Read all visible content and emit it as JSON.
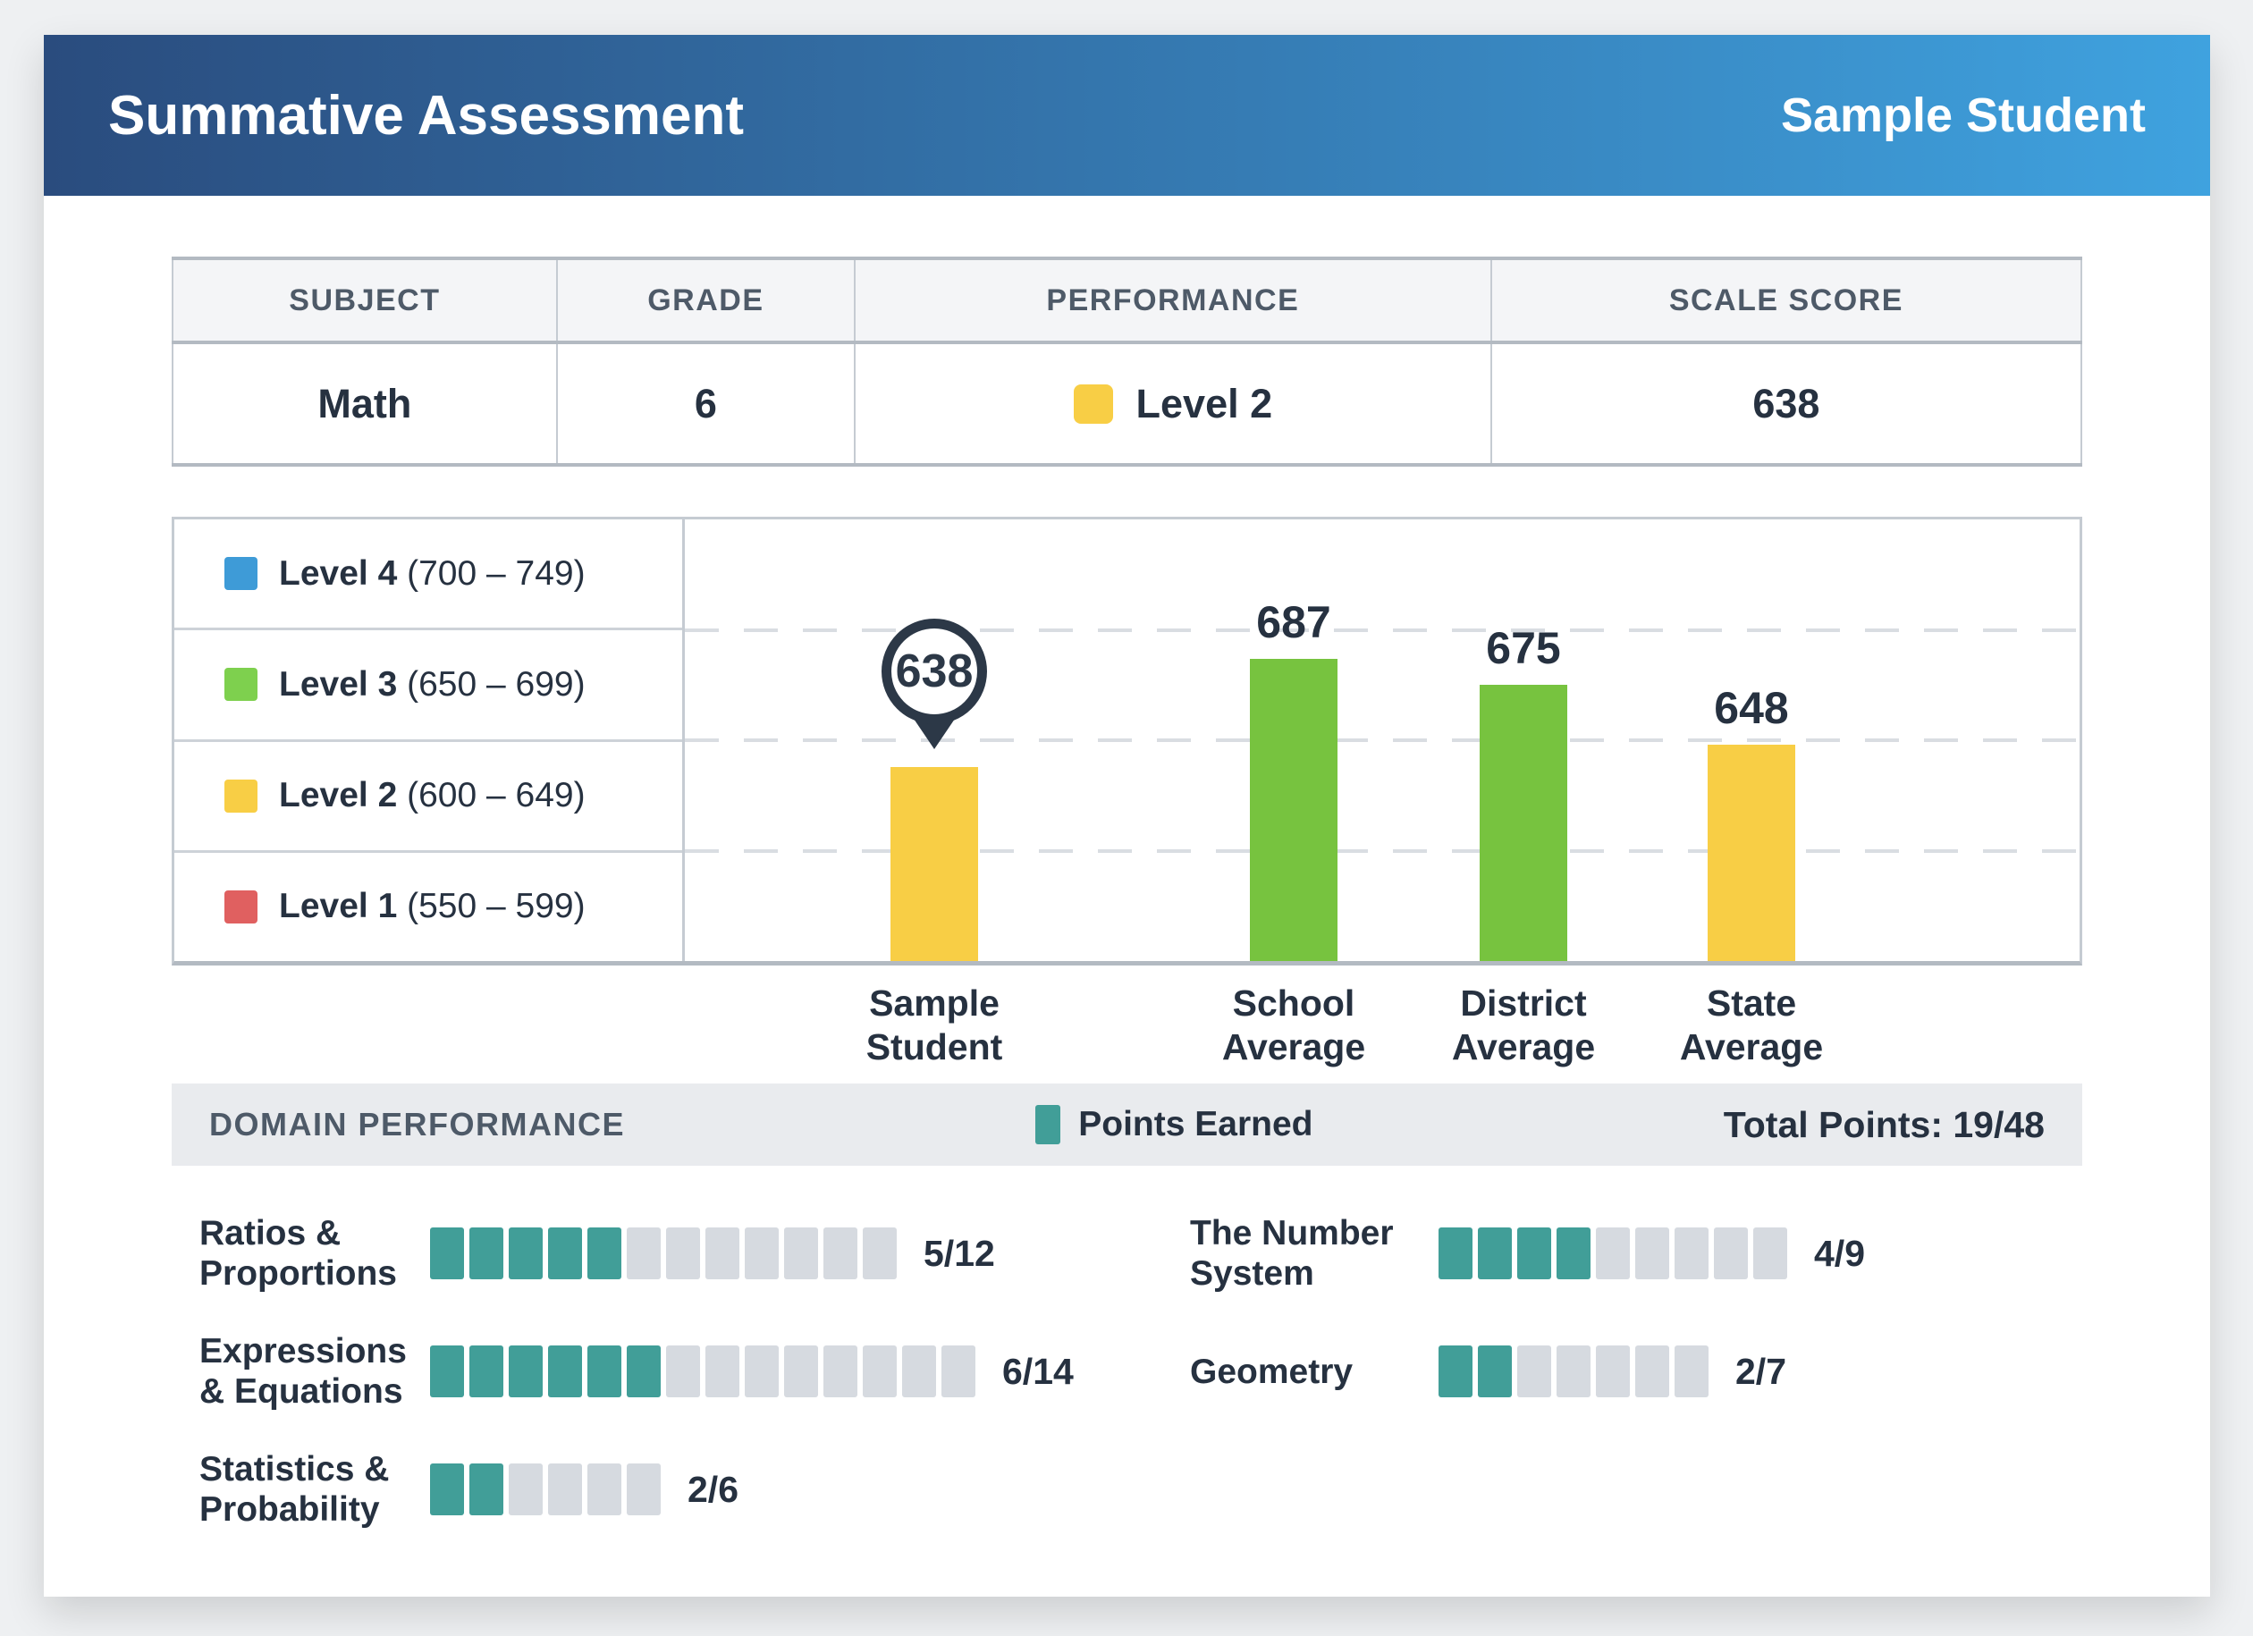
{
  "header": {
    "title": "Summative Assessment",
    "student_name": "Sample Student"
  },
  "summary_table": {
    "columns": [
      "SUBJECT",
      "GRADE",
      "PERFORMANCE",
      "SCALE SCORE"
    ],
    "row": {
      "subject": "Math",
      "grade": "6",
      "performance_label": "Level 2",
      "performance_color": "#f8ce45",
      "scale_score": "638"
    }
  },
  "chart_data": {
    "type": "bar",
    "title": "",
    "categories": [
      "Sample Student",
      "School Average",
      "District Average",
      "State Average"
    ],
    "values": [
      638,
      687,
      675,
      648
    ],
    "bar_colors": [
      "#f8ce45",
      "#77c33f",
      "#77c33f",
      "#f8ce45"
    ],
    "highlight_index": 0,
    "ylim": [
      550,
      750
    ],
    "gridlines": [
      700,
      650,
      600
    ],
    "grid_style": "dashed",
    "legend_position": "left",
    "legend": [
      {
        "label": "Level 4",
        "range": "(700 – 749)",
        "color": "#3e9bd7"
      },
      {
        "label": "Level 3",
        "range": "(650 – 699)",
        "color": "#7ed04e"
      },
      {
        "label": "Level 2",
        "range": "(600 – 649)",
        "color": "#f8ce45"
      },
      {
        "label": "Level 1",
        "range": "(550 – 599)",
        "color": "#e06060"
      }
    ]
  },
  "domain_performance": {
    "section_title": "DOMAIN PERFORMANCE",
    "legend_label": "Points Earned",
    "legend_color": "#419e98",
    "empty_color": "#d6dae0",
    "total_label": "Total Points: 19/48",
    "domains": [
      {
        "name": "Ratios & Proportions",
        "earned": 5,
        "total": 12,
        "fraction": "5/12",
        "column": "left"
      },
      {
        "name": "The Number System",
        "earned": 4,
        "total": 9,
        "fraction": "4/9",
        "column": "right"
      },
      {
        "name": "Expressions & Equations",
        "earned": 6,
        "total": 14,
        "fraction": "6/14",
        "column": "left"
      },
      {
        "name": "Geometry",
        "earned": 2,
        "total": 7,
        "fraction": "2/7",
        "column": "right"
      },
      {
        "name": "Statistics & Probability",
        "earned": 2,
        "total": 6,
        "fraction": "2/6",
        "column": "left"
      }
    ]
  }
}
